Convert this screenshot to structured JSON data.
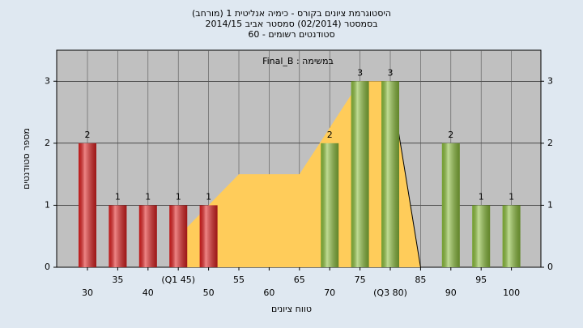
{
  "chart_data": {
    "type": "bar",
    "title": "היסטוגרמת ציונים בקורס - כימיה אנליטית 1 (מורחב)",
    "subtitle": "בסמסטר (02/2014) סמסטר אביב 2014/15",
    "subtitle2": "סטודנטים רשומים - 60",
    "annotation": "במשימה : Final_B",
    "x_label": "טווח ציונים",
    "y_label": "מספר סטודנטים",
    "categories": [
      "30",
      "35",
      "40",
      "(Q1 45)",
      "50",
      "55",
      "60",
      "65",
      "70",
      "75",
      "(Q3 80)",
      "85",
      "90",
      "95",
      "100"
    ],
    "values": [
      2,
      1,
      1,
      1,
      1,
      0,
      0,
      0,
      2,
      3,
      3,
      0,
      2,
      1,
      1
    ],
    "colors": [
      "#e02020",
      "#e02020",
      "#e02020",
      "#e02020",
      "#e02020",
      "#e02020",
      "#e02020",
      "#e02020",
      "#8cbf3c",
      "#8cbf3c",
      "#8cbf3c",
      "#8cbf3c",
      "#8cbf3c",
      "#8cbf3c",
      "#8cbf3c"
    ],
    "area": {
      "color": "#ffcc5a",
      "values": [
        null,
        null,
        null,
        0.5,
        1,
        1.5,
        1.5,
        1.5,
        2.25,
        3,
        3,
        0,
        null,
        null,
        null
      ]
    },
    "ylim": [
      0,
      3.5
    ],
    "yticks": [
      0,
      1,
      2,
      3
    ],
    "grid": true
  }
}
